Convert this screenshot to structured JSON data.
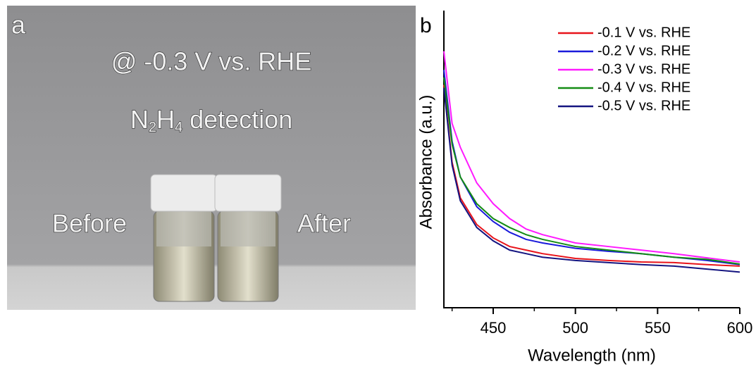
{
  "photo": {
    "panel_label": "a",
    "potential": "@ -0.3 V vs. RHE",
    "formula": [
      "N",
      "2",
      "H",
      "4"
    ],
    "detection": "detection",
    "before": "Before",
    "after": "After"
  },
  "chart_data": {
    "type": "line",
    "panel_label": "b",
    "x_label": "Wavelength (nm)",
    "y_label": "Absorbance (a.u.)",
    "x": [
      420,
      425,
      430,
      440,
      450,
      460,
      470,
      480,
      500,
      520,
      540,
      560,
      580,
      600
    ],
    "series": [
      {
        "name": "-0.1 V vs. RHE",
        "color": "#e8141b",
        "values": [
          0.75,
          0.49,
          0.37,
          0.28,
          0.235,
          0.206,
          0.194,
          0.182,
          0.166,
          0.159,
          0.154,
          0.152,
          0.145,
          0.14
        ]
      },
      {
        "name": "-0.2 V vs. RHE",
        "color": "#1a1adb",
        "values": [
          0.8,
          0.56,
          0.44,
          0.34,
          0.29,
          0.254,
          0.23,
          0.218,
          0.2,
          0.19,
          0.182,
          0.17,
          0.159,
          0.145
        ]
      },
      {
        "name": "-0.3 V vs. RHE",
        "color": "#ff1aff",
        "values": [
          0.863,
          0.62,
          0.54,
          0.42,
          0.35,
          0.3,
          0.265,
          0.246,
          0.218,
          0.206,
          0.194,
          0.182,
          0.168,
          0.154
        ]
      },
      {
        "name": "-0.4 V vs. RHE",
        "color": "#148c14",
        "values": [
          0.775,
          0.55,
          0.44,
          0.35,
          0.3,
          0.27,
          0.246,
          0.23,
          0.206,
          0.194,
          0.182,
          0.17,
          0.163,
          0.147
        ]
      },
      {
        "name": "-0.5 V vs. RHE",
        "color": "#141480",
        "values": [
          0.74,
          0.48,
          0.36,
          0.27,
          0.225,
          0.194,
          0.182,
          0.17,
          0.159,
          0.152,
          0.145,
          0.14,
          0.13,
          0.12
        ]
      }
    ],
    "xlim": [
      420,
      600
    ],
    "xticks": [
      450,
      500,
      550,
      600
    ],
    "xminor_ticks": [
      425,
      475,
      525,
      575
    ],
    "ylim": [
      0,
      1
    ],
    "legend": "upper right"
  }
}
